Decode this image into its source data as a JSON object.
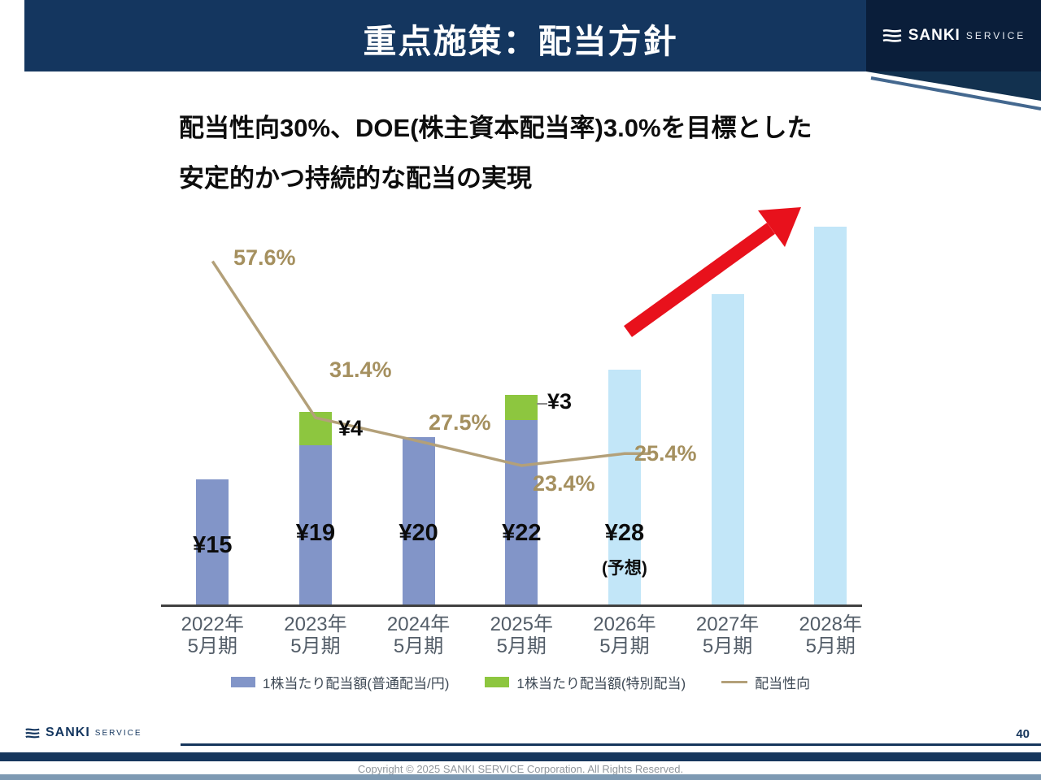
{
  "slide": {
    "header_title": "重点施策：配当方針",
    "brand": {
      "name": "SANKI",
      "suffix": "SERVICE"
    },
    "headline_line1": "配当性向30%、DOE(株主資本配当率)3.0%を目標とした",
    "headline_line2": "安定的かつ持続的な配当の実現",
    "page_number": "40",
    "copyright": "Copyright © 2025 SANKI SERVICE Corporation. All Rights Reserved."
  },
  "colors": {
    "header_navy": "#14365f",
    "brand_dark": "#0a1e3a",
    "footer_navy": "#16365c",
    "footer_steel": "#7e9ab3",
    "arrow_red": "#e8111c",
    "axis": "#404040"
  },
  "chart_data": {
    "type": "bar",
    "subtype": "stacked bars with overlaid payout-ratio line",
    "title": "",
    "categories": [
      "2022年5月期",
      "2023年5月期",
      "2024年5月期",
      "2025年5月期",
      "2026年5月期",
      "2027年5月期",
      "2028年5月期"
    ],
    "series": [
      {
        "name": "1株当たり配当額(普通配当/円)",
        "type": "bar",
        "color": "#8295c8",
        "forecast_color": "#c2e6f8",
        "forecast_start_index": 4,
        "forecast_note": "(予想)",
        "values": [
          15,
          19,
          20,
          22,
          28,
          37,
          45
        ],
        "value_labels": [
          "¥15",
          "¥19",
          "¥20",
          "¥22",
          "¥28",
          "",
          ""
        ],
        "estimated_indices": [
          5,
          6
        ],
        "estimated_note": "2027/2028 bars are unlabeled forecast bars; values estimated from bar heights"
      },
      {
        "name": "1株当たり配当額(特別配当)",
        "type": "bar",
        "stacked_on": 0,
        "color": "#8dc63f",
        "values": [
          0,
          4,
          0,
          3,
          0,
          0,
          0
        ],
        "value_labels": [
          "",
          "¥4",
          "",
          "¥3",
          "",
          "",
          ""
        ]
      },
      {
        "name": "配当性向",
        "type": "line",
        "color": "#b3a079",
        "values": [
          57.6,
          31.4,
          27.5,
          23.4,
          25.4,
          null,
          null
        ],
        "value_labels": [
          "57.6%",
          "31.4%",
          "27.5%",
          "23.4%",
          "25.4%",
          "",
          ""
        ]
      }
    ],
    "grid": false,
    "legend_position": "bottom",
    "annotations": [
      "red upward arrow over 2026-2028 forecast bars indicating dividend growth"
    ]
  }
}
